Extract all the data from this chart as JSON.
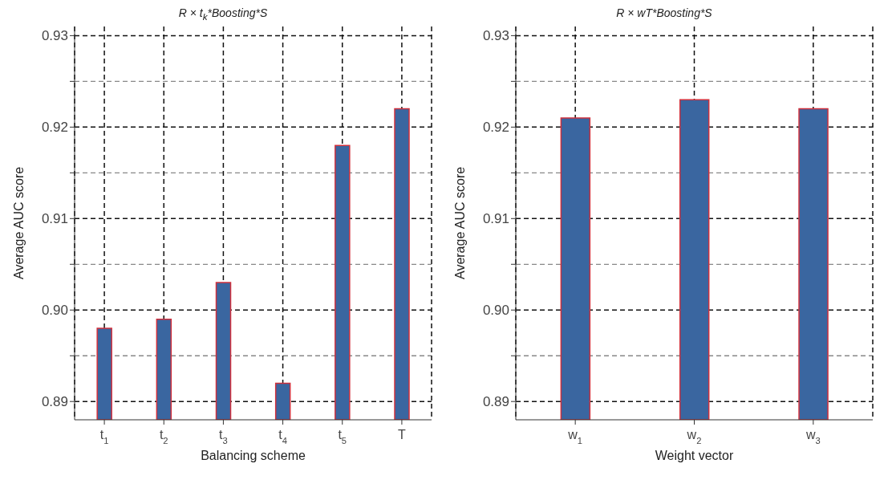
{
  "chart_data": [
    {
      "type": "bar",
      "title": "R × t$_{k}$*Boosting*S",
      "xlabel": "Balancing scheme",
      "ylabel": "Average AUC score",
      "categories": [
        "t$_{1}$",
        "t$_{2}$",
        "t$_{3}$",
        "t$_{4}$",
        "t$_{5}$",
        "T"
      ],
      "values": [
        0.898,
        0.899,
        0.903,
        0.892,
        0.918,
        0.922
      ],
      "color": "#3a66a0",
      "ylim": [
        0.888,
        0.931
      ],
      "yticks": [
        0.89,
        {
          "value": 0.895,
          "label": null
        },
        {
          "value": 0.9,
          "label": "0.90"
        },
        {
          "value": 0.905,
          "label": null
        },
        0.91,
        {
          "value": 0.915,
          "label": null
        },
        0.92,
        {
          "value": 0.925,
          "label": null
        },
        0.93
      ],
      "grid": true
    },
    {
      "type": "bar",
      "title": "R × wT*Boosting*S",
      "xlabel": "Weight vector",
      "ylabel": "Average AUC score",
      "categories": [
        "w$_{1}$",
        "w$_{2}$",
        "w$_{3}$"
      ],
      "values": [
        0.921,
        0.923,
        0.922
      ],
      "color": "#3a66a0",
      "ylim": [
        0.888,
        0.931
      ],
      "yticks": [
        0.89,
        {
          "value": 0.895,
          "label": null
        },
        {
          "value": 0.9,
          "label": "0.90"
        },
        {
          "value": 0.905,
          "label": null
        },
        0.91,
        {
          "value": 0.915,
          "label": null
        },
        0.92,
        {
          "value": 0.925,
          "label": null
        },
        0.93
      ],
      "grid": true
    }
  ]
}
